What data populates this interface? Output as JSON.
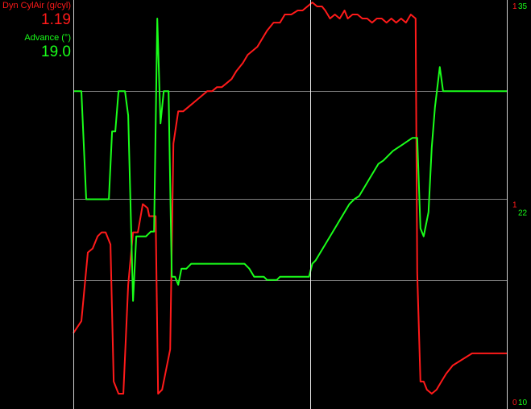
{
  "colors": {
    "background": "#000000",
    "plot_border": "#d0d0d0",
    "gridline": "#808080",
    "cursor": "#e8e8e8",
    "left_series": "#ff1a1a",
    "right_series": "#1aff1a"
  },
  "chart_data": {
    "type": "line",
    "title": "",
    "grid": true,
    "legend_position": "top-left",
    "xlim": [
      0,
      537
    ],
    "cursor_x": 293,
    "series": [
      {
        "name": "Dyn CylAir (g/cyl)",
        "current_value": "1.19",
        "color": "#ff1a1a",
        "ylim": [
          0,
          1
        ],
        "points": [
          [
            0,
            0.18
          ],
          [
            10,
            0.21
          ],
          [
            18,
            0.38
          ],
          [
            24,
            0.39
          ],
          [
            30,
            0.42
          ],
          [
            35,
            0.43
          ],
          [
            40,
            0.43
          ],
          [
            46,
            0.4
          ],
          [
            50,
            0.06
          ],
          [
            56,
            0.03
          ],
          [
            62,
            0.03
          ],
          [
            68,
            0.3
          ],
          [
            74,
            0.43
          ],
          [
            80,
            0.43
          ],
          [
            86,
            0.5
          ],
          [
            92,
            0.49
          ],
          [
            94,
            0.47
          ],
          [
            98,
            0.47
          ],
          [
            102,
            0.47
          ],
          [
            105,
            0.03
          ],
          [
            110,
            0.04
          ],
          [
            114,
            0.08
          ],
          [
            120,
            0.14
          ],
          [
            124,
            0.65
          ],
          [
            130,
            0.73
          ],
          [
            136,
            0.73
          ],
          [
            142,
            0.74
          ],
          [
            148,
            0.75
          ],
          [
            154,
            0.76
          ],
          [
            160,
            0.77
          ],
          [
            166,
            0.78
          ],
          [
            172,
            0.78
          ],
          [
            178,
            0.79
          ],
          [
            184,
            0.79
          ],
          [
            190,
            0.8
          ],
          [
            196,
            0.81
          ],
          [
            202,
            0.83
          ],
          [
            210,
            0.85
          ],
          [
            216,
            0.87
          ],
          [
            222,
            0.88
          ],
          [
            228,
            0.89
          ],
          [
            234,
            0.91
          ],
          [
            240,
            0.93
          ],
          [
            248,
            0.95
          ],
          [
            256,
            0.95
          ],
          [
            262,
            0.97
          ],
          [
            270,
            0.97
          ],
          [
            278,
            0.98
          ],
          [
            284,
            0.98
          ],
          [
            290,
            0.99
          ],
          [
            296,
            1.0
          ],
          [
            302,
            0.99
          ],
          [
            308,
            0.99
          ],
          [
            312,
            0.98
          ],
          [
            318,
            0.96
          ],
          [
            324,
            0.97
          ],
          [
            330,
            0.96
          ],
          [
            336,
            0.98
          ],
          [
            340,
            0.96
          ],
          [
            346,
            0.97
          ],
          [
            352,
            0.97
          ],
          [
            358,
            0.96
          ],
          [
            364,
            0.96
          ],
          [
            370,
            0.95
          ],
          [
            376,
            0.96
          ],
          [
            382,
            0.96
          ],
          [
            388,
            0.95
          ],
          [
            394,
            0.96
          ],
          [
            400,
            0.95
          ],
          [
            406,
            0.96
          ],
          [
            412,
            0.95
          ],
          [
            418,
            0.97
          ],
          [
            424,
            0.96
          ],
          [
            426,
            0.33
          ],
          [
            430,
            0.06
          ],
          [
            434,
            0.06
          ],
          [
            438,
            0.04
          ],
          [
            444,
            0.03
          ],
          [
            450,
            0.04
          ],
          [
            456,
            0.06
          ],
          [
            462,
            0.08
          ],
          [
            470,
            0.1
          ],
          [
            478,
            0.11
          ],
          [
            486,
            0.12
          ],
          [
            494,
            0.13
          ],
          [
            502,
            0.13
          ],
          [
            510,
            0.13
          ],
          [
            518,
            0.13
          ],
          [
            525,
            0.13
          ],
          [
            537,
            0.13
          ]
        ]
      },
      {
        "name": "Advance (°)",
        "current_value": "19.0",
        "color": "#1aff1a",
        "ylim": [
          10,
          35
        ],
        "points": [
          [
            0,
            29.5
          ],
          [
            10,
            29.5
          ],
          [
            16,
            22.8
          ],
          [
            20,
            22.8
          ],
          [
            26,
            22.8
          ],
          [
            30,
            22.8
          ],
          [
            34,
            22.8
          ],
          [
            40,
            22.8
          ],
          [
            44,
            22.8
          ],
          [
            48,
            27.0
          ],
          [
            52,
            27.0
          ],
          [
            56,
            29.5
          ],
          [
            64,
            29.5
          ],
          [
            68,
            28.0
          ],
          [
            74,
            16.5
          ],
          [
            78,
            20.5
          ],
          [
            84,
            20.5
          ],
          [
            90,
            20.5
          ],
          [
            96,
            20.8
          ],
          [
            100,
            20.8
          ],
          [
            104,
            34.0
          ],
          [
            108,
            27.5
          ],
          [
            112,
            29.5
          ],
          [
            118,
            29.5
          ],
          [
            122,
            18.0
          ],
          [
            126,
            18.0
          ],
          [
            130,
            17.5
          ],
          [
            134,
            18.5
          ],
          [
            140,
            18.5
          ],
          [
            146,
            18.8
          ],
          [
            152,
            18.8
          ],
          [
            158,
            18.8
          ],
          [
            164,
            18.8
          ],
          [
            170,
            18.8
          ],
          [
            176,
            18.8
          ],
          [
            182,
            18.8
          ],
          [
            188,
            18.8
          ],
          [
            194,
            18.8
          ],
          [
            200,
            18.8
          ],
          [
            206,
            18.8
          ],
          [
            212,
            18.8
          ],
          [
            218,
            18.5
          ],
          [
            224,
            18.0
          ],
          [
            230,
            18.0
          ],
          [
            236,
            18.0
          ],
          [
            240,
            17.8
          ],
          [
            246,
            17.8
          ],
          [
            252,
            17.8
          ],
          [
            256,
            18.0
          ],
          [
            260,
            18.0
          ],
          [
            266,
            18.0
          ],
          [
            270,
            18.0
          ],
          [
            276,
            18.0
          ],
          [
            282,
            18.0
          ],
          [
            288,
            18.0
          ],
          [
            292,
            18.0
          ],
          [
            296,
            18.8
          ],
          [
            300,
            19.0
          ],
          [
            306,
            19.5
          ],
          [
            312,
            20.0
          ],
          [
            318,
            20.5
          ],
          [
            324,
            21.0
          ],
          [
            330,
            21.5
          ],
          [
            336,
            22.0
          ],
          [
            342,
            22.5
          ],
          [
            348,
            22.8
          ],
          [
            354,
            23.0
          ],
          [
            360,
            23.5
          ],
          [
            366,
            24.0
          ],
          [
            372,
            24.5
          ],
          [
            378,
            25.0
          ],
          [
            384,
            25.2
          ],
          [
            390,
            25.5
          ],
          [
            396,
            25.8
          ],
          [
            402,
            26.0
          ],
          [
            408,
            26.2
          ],
          [
            414,
            26.4
          ],
          [
            420,
            26.6
          ],
          [
            426,
            26.6
          ],
          [
            430,
            21.0
          ],
          [
            434,
            20.5
          ],
          [
            440,
            22.0
          ],
          [
            444,
            26.0
          ],
          [
            448,
            28.5
          ],
          [
            454,
            31.0
          ],
          [
            458,
            29.5
          ],
          [
            462,
            29.5
          ],
          [
            470,
            29.5
          ],
          [
            480,
            29.5
          ],
          [
            490,
            29.5
          ],
          [
            500,
            29.5
          ],
          [
            510,
            29.5
          ],
          [
            520,
            29.5
          ],
          [
            530,
            29.5
          ],
          [
            537,
            29.5
          ]
        ]
      }
    ],
    "left_axis_ticks": [
      {
        "label": "1",
        "value": 1
      },
      {
        "label": "1",
        "value": 0.5
      },
      {
        "label": "0",
        "value": 0
      }
    ],
    "right_axis_ticks": [
      {
        "label": "35",
        "value": 35
      },
      {
        "label": "22",
        "value": 22
      },
      {
        "label": "10",
        "value": 10
      }
    ],
    "gridlines_right_values": [
      29.5,
      22.8,
      17.8
    ]
  }
}
